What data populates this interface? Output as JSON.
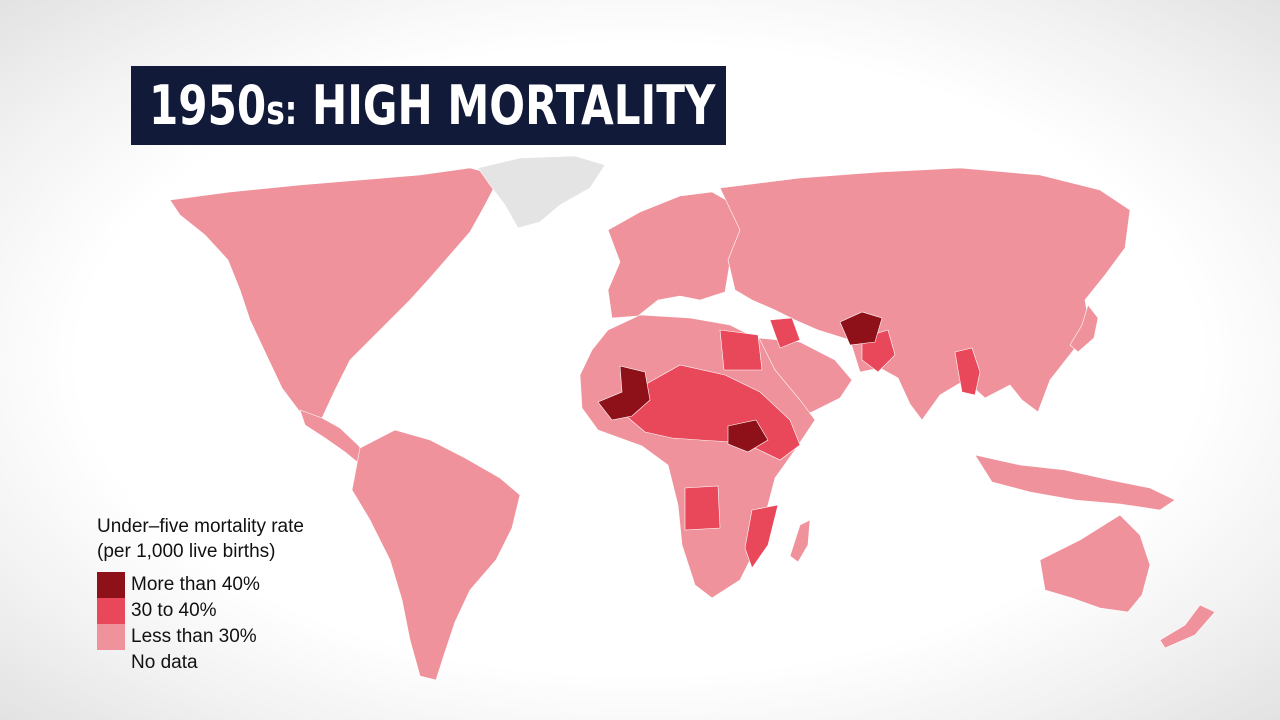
{
  "title": {
    "year": "1950",
    "year_suffix": "s:",
    "headline": "HIGH MORTALITY"
  },
  "legend": {
    "title_line1": "Under–five mortality rate",
    "title_line2": "(per 1,000 live births)",
    "items": [
      {
        "label": "More than 40%",
        "color": "#8e1018"
      },
      {
        "label": "30 to 40%",
        "color": "#e8485a"
      },
      {
        "label": "Less than 30%",
        "color": "#f0929c"
      },
      {
        "label": "No data",
        "color": ""
      }
    ]
  },
  "colors": {
    "title_bg": "#121a3a",
    "no_data": "#e4e4e4",
    "ocean": "#ffffff"
  },
  "regions": [
    {
      "name": "north-america",
      "category": "low"
    },
    {
      "name": "greenland",
      "category": "nodata"
    },
    {
      "name": "south-america",
      "category": "low"
    },
    {
      "name": "europe",
      "category": "low"
    },
    {
      "name": "russia-asia",
      "category": "low"
    },
    {
      "name": "africa",
      "category": "low"
    },
    {
      "name": "australia",
      "category": "low"
    },
    {
      "name": "mali",
      "category": "high"
    },
    {
      "name": "south-sudan",
      "category": "high"
    },
    {
      "name": "afghanistan",
      "category": "high"
    },
    {
      "name": "sahel-belt",
      "category": "mid"
    },
    {
      "name": "egypt",
      "category": "mid"
    },
    {
      "name": "iraq",
      "category": "mid"
    },
    {
      "name": "pakistan",
      "category": "mid"
    },
    {
      "name": "myanmar",
      "category": "mid"
    },
    {
      "name": "angola",
      "category": "mid"
    },
    {
      "name": "mozambique",
      "category": "mid"
    }
  ]
}
